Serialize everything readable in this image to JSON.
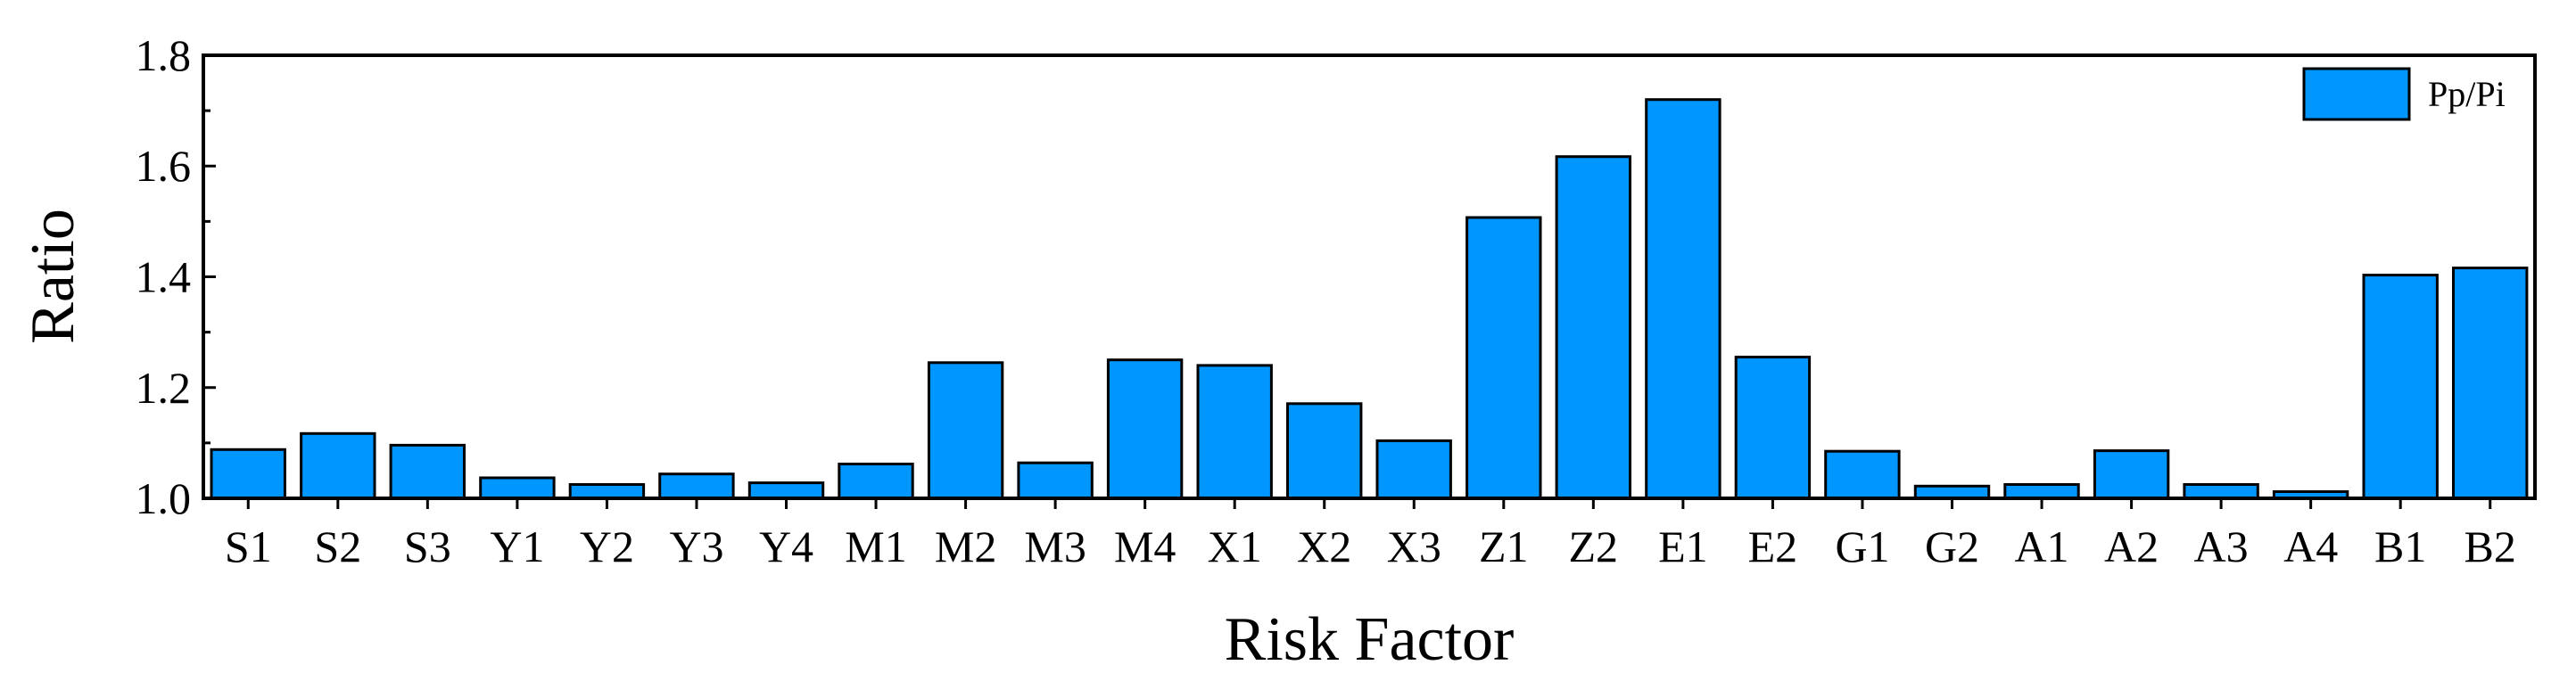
{
  "chart_data": {
    "type": "bar",
    "title": "",
    "xlabel": "Risk Factor",
    "ylabel": "Ratio",
    "ylim": [
      1.0,
      1.8
    ],
    "yticks": [
      "1.0",
      "1.2",
      "1.4",
      "1.6",
      "1.8"
    ],
    "categories": [
      "S1",
      "S2",
      "S3",
      "Y1",
      "Y2",
      "Y3",
      "Y4",
      "M1",
      "M2",
      "M3",
      "M4",
      "X1",
      "X2",
      "X3",
      "Z1",
      "Z2",
      "E1",
      "E2",
      "G1",
      "G2",
      "A1",
      "A2",
      "A3",
      "A4",
      "B1",
      "B2"
    ],
    "series": [
      {
        "name": "Pp/Pi",
        "color": "#0096FF",
        "values": [
          1.088,
          1.117,
          1.096,
          1.037,
          1.025,
          1.044,
          1.028,
          1.062,
          1.245,
          1.064,
          1.25,
          1.24,
          1.171,
          1.104,
          1.507,
          1.617,
          1.72,
          1.255,
          1.085,
          1.022,
          1.025,
          1.086,
          1.025,
          1.012,
          1.403,
          1.416
        ]
      }
    ],
    "legend_position": "top-right",
    "grid": false
  }
}
